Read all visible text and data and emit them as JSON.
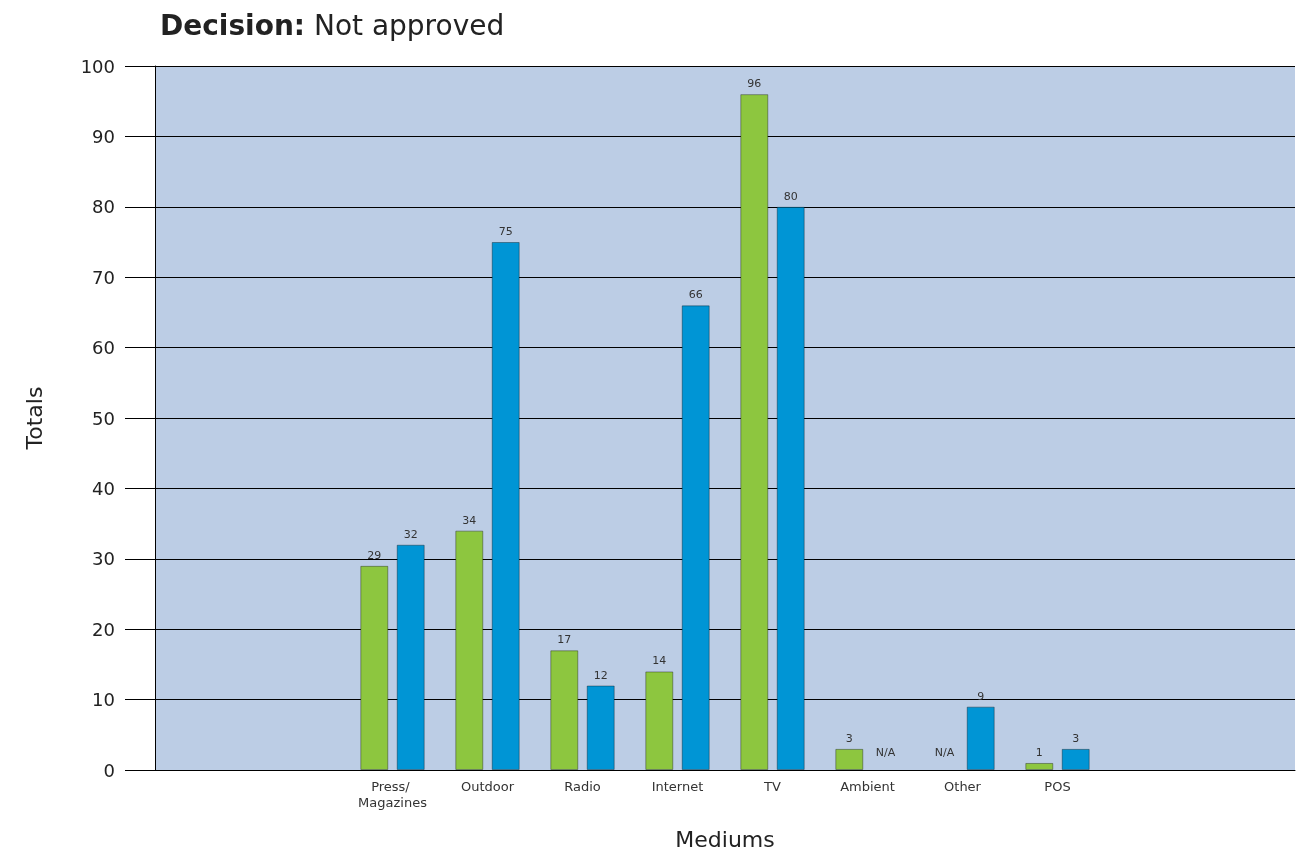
{
  "chart_data": {
    "type": "bar",
    "title": "Decision: Not approved",
    "xlabel": "Mediums",
    "ylabel": "Totals",
    "categories": [
      null,
      null,
      "Press/ Magazines",
      "Outdoor",
      "Radio",
      "Internet",
      "TV",
      "Ambient",
      "Other",
      "POS",
      null,
      null
    ],
    "series": [
      {
        "color": "#8dc63f",
        "values": [
          null,
          null,
          29,
          34,
          17,
          14,
          96,
          3,
          null,
          1,
          null,
          null
        ],
        "value_labels": [
          null,
          null,
          "29",
          "34",
          "17",
          "14",
          "96",
          "3",
          "N/A",
          "1",
          null,
          null
        ]
      },
      {
        "color": "#0095d5",
        "values": [
          null,
          null,
          32,
          75,
          12,
          66,
          80,
          null,
          9,
          3,
          null,
          null
        ],
        "value_labels": [
          null,
          null,
          "32",
          "75",
          "12",
          "66",
          "80",
          "N/A",
          "9",
          "3",
          null,
          null
        ]
      }
    ],
    "ylim": [
      0,
      100
    ],
    "yticks": [
      0,
      10,
      20,
      30,
      40,
      50,
      60,
      70,
      80,
      90,
      100
    ],
    "grid": "y"
  }
}
